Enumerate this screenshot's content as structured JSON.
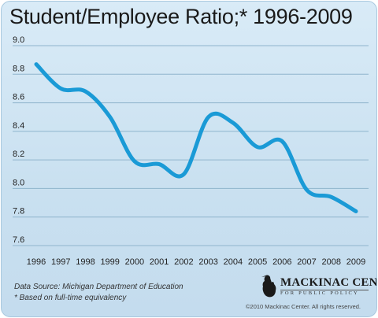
{
  "chart_data": {
    "type": "line",
    "title": "Student/Employee Ratio;* 1996-2009",
    "xlabel": "",
    "ylabel": "",
    "x": [
      "1996",
      "1997",
      "1998",
      "1999",
      "2000",
      "2001",
      "2002",
      "2003",
      "2004",
      "2005",
      "2006",
      "2007",
      "2008",
      "2009"
    ],
    "series": [
      {
        "values": [
          8.87,
          8.7,
          8.68,
          8.5,
          8.19,
          8.17,
          8.1,
          8.5,
          8.46,
          8.29,
          8.33,
          7.99,
          7.94,
          7.84
        ]
      }
    ],
    "ylim": [
      7.6,
      9.0
    ],
    "yticks": [
      "9.0",
      "8.8",
      "8.6",
      "8.4",
      "8.2",
      "8.0",
      "7.8",
      "7.6"
    ],
    "grid": true,
    "line_color": "#1a9ad6"
  },
  "footer": {
    "source": "Data Source:  Michigan Department of Education",
    "note": "* Based on full-time equivalency",
    "logo_name": "MACKINAC CENTER",
    "logo_sub": "FOR PUBLIC POLICY",
    "copyright": "©2010 Mackinac Center. All rights reserved."
  }
}
